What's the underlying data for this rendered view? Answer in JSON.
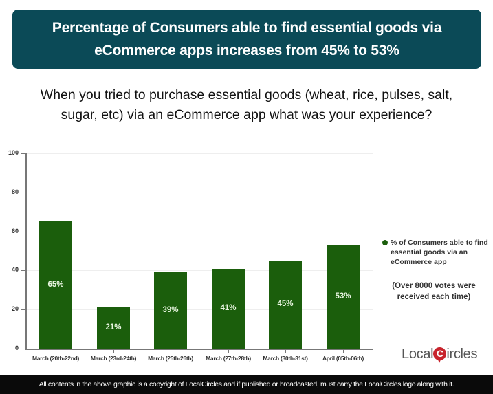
{
  "banner": {
    "line1": "Percentage of Consumers able to find essential goods via",
    "line2": "eCommerce apps increases from 45% to 53%"
  },
  "question": {
    "line1": "When you tried to purchase essential goods (wheat, rice, pulses, salt,",
    "line2": "sugar, etc) via an eCommerce app what was your experience?"
  },
  "legend": {
    "label": "% of Consumers able to find essential goods via an eCommerce app",
    "color": "#1b5e0c"
  },
  "note": "(Over 8000 votes were received each time)",
  "logo": {
    "left": "Local",
    "c": "C",
    "right": "ircles"
  },
  "footer": "All contents in the above graphic is a copyright of LocalCircles and if published or broadcasted, must carry the LocalCircles logo along with it.",
  "chart_data": {
    "type": "bar",
    "title": "Percentage of Consumers able to find essential goods via eCommerce apps increases from 45% to 53%",
    "subtitle": "When you tried to purchase essential goods (wheat, rice, pulses, salt, sugar, etc) via an eCommerce app what was your experience?",
    "categories": [
      "March (20th-22nd)",
      "March (23rd-24th)",
      "March (25th-26th)",
      "March (27th-28th)",
      "March (30th-31st)",
      "April (05th-06th)"
    ],
    "series": [
      {
        "name": "% of Consumers able to find essential goods via an eCommerce app",
        "values": [
          65,
          21,
          39,
          41,
          45,
          53
        ],
        "color": "#1b5e0c"
      }
    ],
    "data_labels": [
      "65%",
      "21%",
      "39%",
      "41%",
      "45%",
      "53%"
    ],
    "yticks": [
      0,
      20,
      40,
      60,
      80,
      100
    ],
    "ylim": [
      0,
      100
    ],
    "xlabel": "",
    "ylabel": "",
    "grid": true,
    "legend_position": "right",
    "annotation": "(Over 8000 votes were received each time)"
  }
}
